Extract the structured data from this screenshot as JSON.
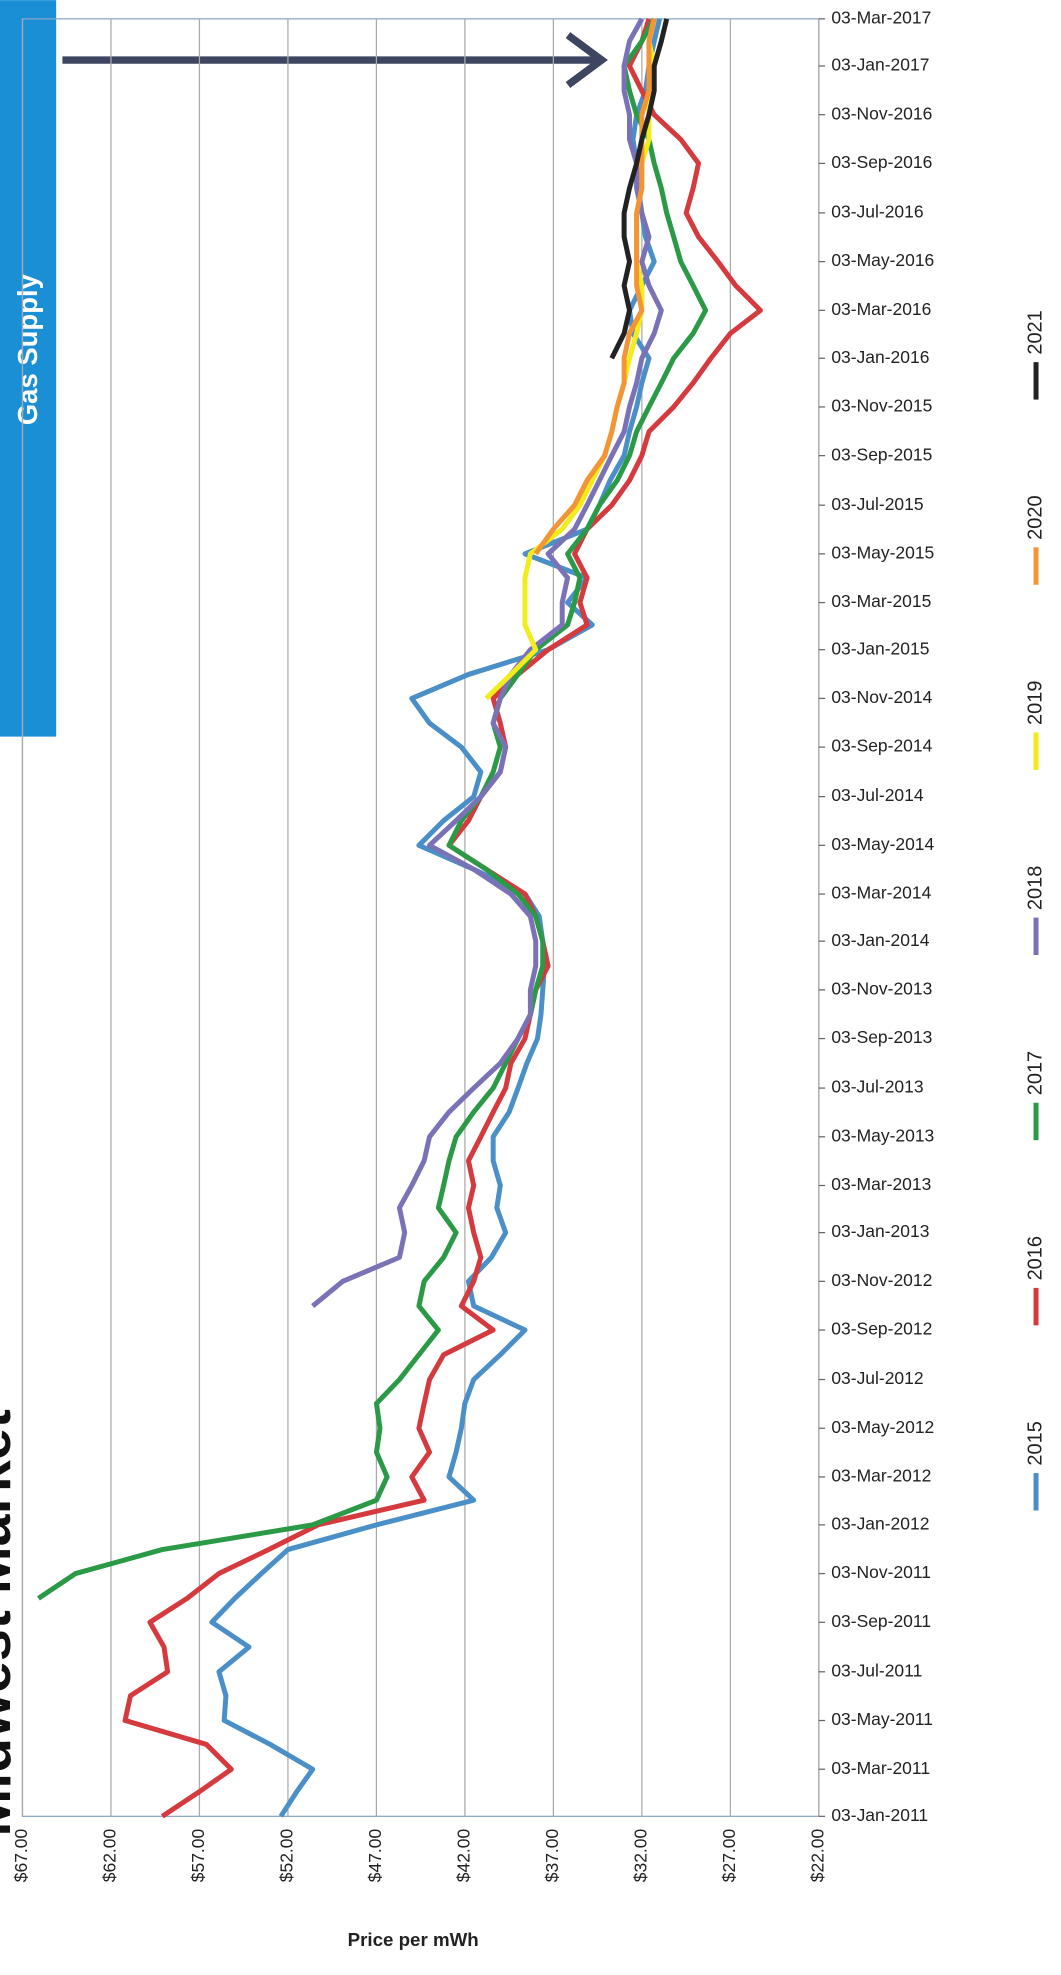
{
  "banner": "Gas Supply",
  "chart_data": {
    "type": "line",
    "title": "Midwest Market",
    "y_label": "Price per mWh",
    "grid": true,
    "rotated": true,
    "x": [
      "2011-01-03",
      "2011-02-03",
      "2011-03-03",
      "2011-04-03",
      "2011-05-03",
      "2011-06-03",
      "2011-07-03",
      "2011-08-03",
      "2011-09-03",
      "2011-10-03",
      "2011-11-03",
      "2011-12-03",
      "2012-01-03",
      "2012-02-03",
      "2012-03-03",
      "2012-04-03",
      "2012-05-03",
      "2012-06-03",
      "2012-07-03",
      "2012-08-03",
      "2012-09-03",
      "2012-10-03",
      "2012-11-03",
      "2012-12-03",
      "2013-01-03",
      "2013-02-03",
      "2013-03-03",
      "2013-04-03",
      "2013-05-03",
      "2013-06-03",
      "2013-07-03",
      "2013-08-03",
      "2013-09-03",
      "2013-10-03",
      "2013-11-03",
      "2013-12-03",
      "2014-01-03",
      "2014-02-03",
      "2014-03-03",
      "2014-04-03",
      "2014-05-03",
      "2014-06-03",
      "2014-07-03",
      "2014-08-03",
      "2014-09-03",
      "2014-10-03",
      "2014-11-03",
      "2014-12-03",
      "2015-01-03",
      "2015-02-03",
      "2015-03-03",
      "2015-04-03",
      "2015-05-03",
      "2015-06-03",
      "2015-07-03",
      "2015-08-03",
      "2015-09-03",
      "2015-10-03",
      "2015-11-03",
      "2015-12-03",
      "2016-01-03",
      "2016-02-03",
      "2016-03-03",
      "2016-04-03",
      "2016-05-03",
      "2016-06-03",
      "2016-07-03",
      "2016-08-03",
      "2016-09-03",
      "2016-10-03",
      "2016-11-03",
      "2016-12-03",
      "2017-01-03",
      "2017-02-03",
      "2017-03-03"
    ],
    "xlim": [
      "2011-01-03",
      "2017-03-03"
    ],
    "xticks": [
      {
        "value": "2011-01-03",
        "label": "03-Jan-2011"
      },
      {
        "value": "2011-03-03",
        "label": "03-Mar-2011"
      },
      {
        "value": "2011-05-03",
        "label": "03-May-2011"
      },
      {
        "value": "2011-07-03",
        "label": "03-Jul-2011"
      },
      {
        "value": "2011-09-03",
        "label": "03-Sep-2011"
      },
      {
        "value": "2011-11-03",
        "label": "03-Nov-2011"
      },
      {
        "value": "2012-01-03",
        "label": "03-Jan-2012"
      },
      {
        "value": "2012-03-03",
        "label": "03-Mar-2012"
      },
      {
        "value": "2012-05-03",
        "label": "03-May-2012"
      },
      {
        "value": "2012-07-03",
        "label": "03-Jul-2012"
      },
      {
        "value": "2012-09-03",
        "label": "03-Sep-2012"
      },
      {
        "value": "2012-11-03",
        "label": "03-Nov-2012"
      },
      {
        "value": "2013-01-03",
        "label": "03-Jan-2013"
      },
      {
        "value": "2013-03-03",
        "label": "03-Mar-2013"
      },
      {
        "value": "2013-05-03",
        "label": "03-May-2013"
      },
      {
        "value": "2013-07-03",
        "label": "03-Jul-2013"
      },
      {
        "value": "2013-09-03",
        "label": "03-Sep-2013"
      },
      {
        "value": "2013-11-03",
        "label": "03-Nov-2013"
      },
      {
        "value": "2014-01-03",
        "label": "03-Jan-2014"
      },
      {
        "value": "2014-03-03",
        "label": "03-Mar-2014"
      },
      {
        "value": "2014-05-03",
        "label": "03-May-2014"
      },
      {
        "value": "2014-07-03",
        "label": "03-Jul-2014"
      },
      {
        "value": "2014-09-03",
        "label": "03-Sep-2014"
      },
      {
        "value": "2014-11-03",
        "label": "03-Nov-2014"
      },
      {
        "value": "2015-01-03",
        "label": "03-Jan-2015"
      },
      {
        "value": "2015-03-03",
        "label": "03-Mar-2015"
      },
      {
        "value": "2015-05-03",
        "label": "03-May-2015"
      },
      {
        "value": "2015-07-03",
        "label": "03-Jul-2015"
      },
      {
        "value": "2015-09-03",
        "label": "03-Sep-2015"
      },
      {
        "value": "2015-11-03",
        "label": "03-Nov-2015"
      },
      {
        "value": "2016-01-03",
        "label": "03-Jan-2016"
      },
      {
        "value": "2016-03-03",
        "label": "03-Mar-2016"
      },
      {
        "value": "2016-05-03",
        "label": "03-May-2016"
      },
      {
        "value": "2016-07-03",
        "label": "03-Jul-2016"
      },
      {
        "value": "2016-09-03",
        "label": "03-Sep-2016"
      },
      {
        "value": "2016-11-03",
        "label": "03-Nov-2016"
      },
      {
        "value": "2017-01-03",
        "label": "03-Jan-2017"
      },
      {
        "value": "2017-03-03",
        "label": "03-Mar-2017"
      }
    ],
    "ylim": [
      22,
      67
    ],
    "yticks": [
      {
        "value": 22,
        "label": "$22.00"
      },
      {
        "value": 27,
        "label": "$27.00"
      },
      {
        "value": 32,
        "label": "$32.00"
      },
      {
        "value": 37,
        "label": "$37.00"
      },
      {
        "value": 42,
        "label": "$42.00"
      },
      {
        "value": 47,
        "label": "$47.00"
      },
      {
        "value": 52,
        "label": "$52.00"
      },
      {
        "value": 57,
        "label": "$57.00"
      },
      {
        "value": 62,
        "label": "$62.00"
      },
      {
        "value": 67,
        "label": "$67.00"
      }
    ],
    "series": [
      {
        "name": "2015",
        "color": "#4a8fc7",
        "values": [
          52.4,
          51.5,
          50.6,
          53,
          55.6,
          55.5,
          55.9,
          54.2,
          56.3,
          55,
          53.5,
          52,
          47,
          41.5,
          42.9,
          42.5,
          42.2,
          42,
          41.5,
          40,
          38.6,
          41.5,
          41.8,
          40.5,
          39.7,
          40.2,
          40,
          40.4,
          40.4,
          39.5,
          39,
          38.5,
          37.9,
          37.7,
          37.6,
          37.5,
          37.6,
          37.8,
          38.6,
          41.5,
          44.6,
          43.2,
          41.5,
          41.1,
          42.2,
          44,
          45,
          41.8,
          37.3,
          34.8,
          36.2,
          35.1,
          38.6,
          35.1,
          34.4,
          33.8,
          33,
          32.7,
          32.3,
          32,
          31.6,
          32.5,
          32.7,
          32,
          31.3,
          31.8,
          32,
          32.2,
          32.3,
          32.5,
          32.3,
          31.8,
          31.6,
          31.3,
          31
        ]
      },
      {
        "name": "2016",
        "color": "#d43a3e",
        "values": [
          59.1,
          57,
          55.2,
          56.6,
          61.2,
          60.9,
          58.8,
          59,
          59.8,
          57.7,
          55.9,
          53.1,
          50.3,
          44.3,
          45,
          44,
          44.6,
          44.3,
          44,
          43.2,
          40.4,
          42.2,
          41.5,
          41.1,
          41.5,
          41.8,
          41.5,
          41.8,
          41.1,
          40.4,
          39.7,
          39.4,
          38.6,
          38.3,
          38,
          37.3,
          37.6,
          38,
          38.6,
          40.8,
          42.9,
          41.8,
          41.1,
          40,
          39.7,
          40,
          40.4,
          39,
          37.3,
          35.1,
          35.5,
          35.1,
          35.8,
          35.1,
          33.7,
          32.7,
          32,
          31.6,
          30.2,
          29.1,
          28.1,
          27,
          25.3,
          26.7,
          27.7,
          28.8,
          29.5,
          29.1,
          28.8,
          29.8,
          31.3,
          32,
          32.7,
          32,
          31.6
        ]
      },
      {
        "name": "2017",
        "color": "#2a9a46",
        "values": [
          null,
          null,
          null,
          null,
          null,
          null,
          null,
          null,
          null,
          66.1,
          64,
          59.1,
          50.6,
          47,
          46.4,
          47,
          46.8,
          47,
          45.7,
          44.6,
          43.5,
          44.6,
          44.3,
          43.2,
          42.5,
          43.5,
          43.2,
          42.9,
          42.5,
          41.5,
          40.4,
          39.7,
          39,
          38.3,
          38,
          37.6,
          37.6,
          38,
          39,
          40.8,
          42.9,
          42.2,
          41.1,
          40.4,
          40,
          40.4,
          40,
          39,
          38,
          36.2,
          35.8,
          35.5,
          36.2,
          35.1,
          34.4,
          33.4,
          32.7,
          32.3,
          31.6,
          30.9,
          30.2,
          29.1,
          28.4,
          29.1,
          29.8,
          30.2,
          30.6,
          30.9,
          31.3,
          31.6,
          32.3,
          32.7,
          33,
          32,
          31.3
        ]
      },
      {
        "name": "2018",
        "color": "#7a72b6",
        "values": [
          null,
          null,
          null,
          null,
          null,
          null,
          null,
          null,
          null,
          null,
          null,
          null,
          null,
          null,
          null,
          null,
          null,
          null,
          null,
          null,
          null,
          50.6,
          48.9,
          45.7,
          45.4,
          45.7,
          45,
          44.3,
          44,
          42.9,
          41.5,
          40,
          39,
          38.3,
          38.3,
          38,
          38,
          38.3,
          39.4,
          41.5,
          44,
          42.5,
          41.1,
          40,
          39.7,
          40.4,
          40,
          39.4,
          38.3,
          36.5,
          36.5,
          36.2,
          37.3,
          35.8,
          35.1,
          34.4,
          33.7,
          33,
          32.7,
          32.3,
          32,
          31.3,
          30.9,
          31.6,
          32,
          31.6,
          32,
          32.3,
          32.3,
          32.7,
          32.7,
          33,
          33,
          32.7,
          32
        ]
      },
      {
        "name": "2019",
        "color": "#f2ec1c",
        "values": [
          null,
          null,
          null,
          null,
          null,
          null,
          null,
          null,
          null,
          null,
          null,
          null,
          null,
          null,
          null,
          null,
          null,
          null,
          null,
          null,
          null,
          null,
          null,
          null,
          null,
          null,
          null,
          null,
          null,
          null,
          null,
          null,
          null,
          null,
          null,
          null,
          null,
          null,
          null,
          null,
          null,
          null,
          null,
          null,
          null,
          null,
          40.8,
          39.4,
          38,
          38.6,
          38.6,
          38.6,
          38.3,
          36.5,
          35.5,
          34.8,
          34.1,
          33.7,
          33.4,
          33,
          32.7,
          32.3,
          32,
          32,
          32.3,
          32.3,
          32.3,
          32,
          32,
          31.6,
          31.6,
          31.6,
          31.3,
          31.6,
          31.3
        ]
      },
      {
        "name": "2020",
        "color": "#f39436",
        "values": [
          null,
          null,
          null,
          null,
          null,
          null,
          null,
          null,
          null,
          null,
          null,
          null,
          null,
          null,
          null,
          null,
          null,
          null,
          null,
          null,
          null,
          null,
          null,
          null,
          null,
          null,
          null,
          null,
          null,
          null,
          null,
          null,
          null,
          null,
          null,
          null,
          null,
          null,
          null,
          null,
          null,
          null,
          null,
          null,
          null,
          null,
          null,
          null,
          null,
          null,
          null,
          null,
          38,
          37,
          35.8,
          35.1,
          34.1,
          33.7,
          33.4,
          33,
          33,
          32.7,
          32,
          32.3,
          32.3,
          32.3,
          32.3,
          32,
          32,
          32,
          32,
          31.6,
          31.6,
          31.6,
          31.3
        ]
      },
      {
        "name": "2021",
        "color": "#222222",
        "values": [
          null,
          null,
          null,
          null,
          null,
          null,
          null,
          null,
          null,
          null,
          null,
          null,
          null,
          null,
          null,
          null,
          null,
          null,
          null,
          null,
          null,
          null,
          null,
          null,
          null,
          null,
          null,
          null,
          null,
          null,
          null,
          null,
          null,
          null,
          null,
          null,
          null,
          null,
          null,
          null,
          null,
          null,
          null,
          null,
          null,
          null,
          null,
          null,
          null,
          null,
          null,
          null,
          null,
          null,
          null,
          null,
          null,
          null,
          null,
          null,
          33.7,
          33,
          32.7,
          33,
          32.7,
          33,
          33,
          32.7,
          32.3,
          32,
          31.6,
          31.3,
          31.3,
          30.9,
          30.6
        ]
      }
    ]
  }
}
